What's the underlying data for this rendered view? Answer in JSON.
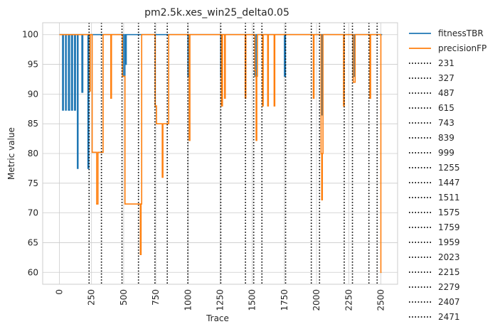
{
  "chart_data": {
    "type": "line",
    "title": "pm2.5k.xes_win25_delta0.05",
    "xlabel": "Trace",
    "ylabel": "Metric value",
    "xlim": [
      -130,
      2630
    ],
    "ylim": [
      58,
      102
    ],
    "xticks": [
      0,
      250,
      500,
      750,
      1000,
      1250,
      1500,
      1750,
      2000,
      2250,
      2500
    ],
    "yticks": [
      60,
      65,
      70,
      75,
      80,
      85,
      90,
      95,
      100
    ],
    "grid": true,
    "legend_position": "outside-right",
    "series": [
      {
        "name": "fitnessTBR",
        "color": "#1f77b4",
        "points": [
          [
            0,
            100
          ],
          [
            25,
            100
          ],
          [
            25,
            87.3
          ],
          [
            31,
            87.3
          ],
          [
            31,
            100
          ],
          [
            48,
            100
          ],
          [
            48,
            87.3
          ],
          [
            53,
            87.3
          ],
          [
            53,
            100
          ],
          [
            70,
            100
          ],
          [
            70,
            87.3
          ],
          [
            80,
            87.3
          ],
          [
            80,
            100
          ],
          [
            95,
            100
          ],
          [
            95,
            87.3
          ],
          [
            102,
            87.3
          ],
          [
            102,
            100
          ],
          [
            118,
            100
          ],
          [
            118,
            87.3
          ],
          [
            125,
            87.3
          ],
          [
            125,
            100
          ],
          [
            140,
            100
          ],
          [
            140,
            77.5
          ],
          [
            145,
            77.5
          ],
          [
            145,
            100
          ],
          [
            175,
            100
          ],
          [
            175,
            90.3
          ],
          [
            182,
            90.3
          ],
          [
            182,
            100
          ],
          [
            222,
            100
          ],
          [
            222,
            77.5
          ],
          [
            228,
            77.5
          ],
          [
            228,
            100
          ],
          [
            500,
            100
          ],
          [
            500,
            93
          ],
          [
            510,
            93
          ],
          [
            510,
            100
          ],
          [
            515,
            100
          ],
          [
            515,
            95
          ],
          [
            520,
            95
          ],
          [
            520,
            100
          ],
          [
            1000,
            100
          ],
          [
            1000,
            93
          ],
          [
            1010,
            93
          ],
          [
            1010,
            100
          ],
          [
            1255,
            100
          ],
          [
            1255,
            93
          ],
          [
            1262,
            93
          ],
          [
            1262,
            100
          ],
          [
            1520,
            100
          ],
          [
            1520,
            93
          ],
          [
            1530,
            93
          ],
          [
            1530,
            100
          ],
          [
            1750,
            100
          ],
          [
            1750,
            93
          ],
          [
            1758,
            93
          ],
          [
            1758,
            100
          ],
          [
            2040,
            100
          ],
          [
            2040,
            86.5
          ],
          [
            2048,
            86.5
          ],
          [
            2048,
            100
          ],
          [
            2283,
            100
          ],
          [
            2283,
            93
          ],
          [
            2295,
            93
          ],
          [
            2295,
            100
          ],
          [
            2510,
            100
          ]
        ]
      },
      {
        "name": "precisionFP",
        "color": "#ff7f0e",
        "points": [
          [
            0,
            100
          ],
          [
            238,
            100
          ],
          [
            238,
            90.5
          ],
          [
            240,
            90.5
          ],
          [
            240,
            100
          ],
          [
            255,
            100
          ],
          [
            255,
            80.2
          ],
          [
            290,
            80.2
          ],
          [
            290,
            71.5
          ],
          [
            300,
            71.5
          ],
          [
            300,
            80.2
          ],
          [
            340,
            80.2
          ],
          [
            340,
            100
          ],
          [
            400,
            100
          ],
          [
            400,
            89.3
          ],
          [
            405,
            89.3
          ],
          [
            405,
            100
          ],
          [
            490,
            100
          ],
          [
            490,
            93
          ],
          [
            510,
            93
          ],
          [
            510,
            71.5
          ],
          [
            630,
            71.5
          ],
          [
            630,
            63
          ],
          [
            635,
            63
          ],
          [
            635,
            71.5
          ],
          [
            640,
            71.5
          ],
          [
            640,
            100
          ],
          [
            745,
            100
          ],
          [
            745,
            88
          ],
          [
            755,
            88
          ],
          [
            755,
            85
          ],
          [
            800,
            85
          ],
          [
            800,
            76
          ],
          [
            805,
            76
          ],
          [
            805,
            85
          ],
          [
            850,
            85
          ],
          [
            850,
            100
          ],
          [
            1010,
            100
          ],
          [
            1010,
            82.2
          ],
          [
            1015,
            82.2
          ],
          [
            1015,
            100
          ],
          [
            1260,
            100
          ],
          [
            1260,
            88
          ],
          [
            1268,
            88
          ],
          [
            1268,
            100
          ],
          [
            1285,
            100
          ],
          [
            1285,
            89.3
          ],
          [
            1290,
            89.3
          ],
          [
            1290,
            100
          ],
          [
            1445,
            100
          ],
          [
            1445,
            89.3
          ],
          [
            1450,
            89.3
          ],
          [
            1450,
            100
          ],
          [
            1520,
            100
          ],
          [
            1520,
            94
          ],
          [
            1525,
            94
          ],
          [
            1525,
            93
          ],
          [
            1530,
            93
          ],
          [
            1530,
            82.2
          ],
          [
            1535,
            82.2
          ],
          [
            1535,
            93
          ],
          [
            1540,
            93
          ],
          [
            1540,
            100
          ],
          [
            1580,
            100
          ],
          [
            1580,
            88
          ],
          [
            1585,
            88
          ],
          [
            1585,
            100
          ],
          [
            1620,
            100
          ],
          [
            1620,
            88
          ],
          [
            1625,
            88
          ],
          [
            1625,
            100
          ],
          [
            1670,
            100
          ],
          [
            1670,
            88
          ],
          [
            1675,
            88
          ],
          [
            1675,
            100
          ],
          [
            1975,
            100
          ],
          [
            1975,
            89.3
          ],
          [
            1980,
            89.3
          ],
          [
            1980,
            100
          ],
          [
            2035,
            100
          ],
          [
            2035,
            80
          ],
          [
            2040,
            80
          ],
          [
            2040,
            72.2
          ],
          [
            2045,
            72.2
          ],
          [
            2045,
            80
          ],
          [
            2050,
            80
          ],
          [
            2050,
            100
          ],
          [
            2210,
            100
          ],
          [
            2210,
            88
          ],
          [
            2215,
            88
          ],
          [
            2215,
            100
          ],
          [
            2285,
            100
          ],
          [
            2285,
            92
          ],
          [
            2300,
            92
          ],
          [
            2300,
            100
          ],
          [
            2415,
            100
          ],
          [
            2415,
            89.3
          ],
          [
            2420,
            89.3
          ],
          [
            2420,
            100
          ],
          [
            2500,
            100
          ],
          [
            2500,
            60
          ],
          [
            2505,
            60
          ]
        ]
      }
    ],
    "vlines": [
      231,
      327,
      487,
      615,
      743,
      839,
      999,
      1255,
      1447,
      1511,
      1575,
      1759,
      1959,
      2023,
      2215,
      2279,
      2407,
      2471
    ],
    "vline_style": "dotted-black"
  }
}
